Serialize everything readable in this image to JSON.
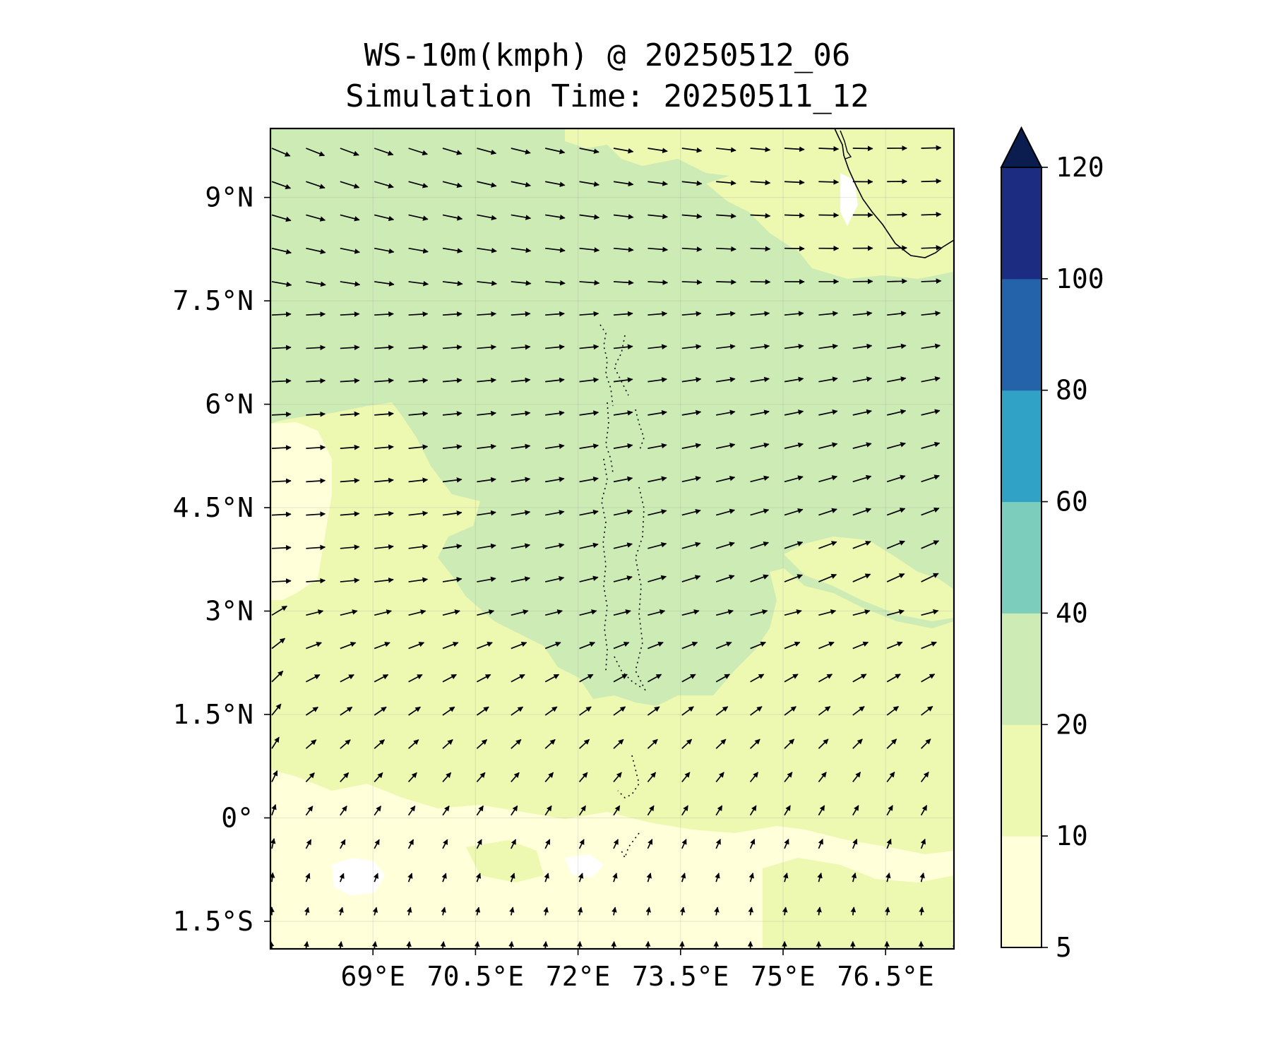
{
  "title": {
    "line1": "WS-10m(kmph) @ 20250512_06",
    "line2": "Simulation Time: 20250511_12"
  },
  "map": {
    "lon_range": [
      67.5,
      77.5
    ],
    "lat_range": [
      -1.9,
      10.0
    ],
    "lon_ticks": [
      {
        "value": 69.0,
        "label": "69°E"
      },
      {
        "value": 70.5,
        "label": "70.5°E"
      },
      {
        "value": 72.0,
        "label": "72°E"
      },
      {
        "value": 73.5,
        "label": "73.5°E"
      },
      {
        "value": 75.0,
        "label": "75°E"
      },
      {
        "value": 76.5,
        "label": "76.5°E"
      }
    ],
    "lat_ticks": [
      {
        "value": 9.0,
        "label": "9°N"
      },
      {
        "value": 7.5,
        "label": "7.5°N"
      },
      {
        "value": 6.0,
        "label": "6°N"
      },
      {
        "value": 4.5,
        "label": "4.5°N"
      },
      {
        "value": 3.0,
        "label": "3°N"
      },
      {
        "value": 1.5,
        "label": "1.5°N"
      },
      {
        "value": 0.0,
        "label": "0°"
      },
      {
        "value": -1.5,
        "label": "1.5°S"
      }
    ],
    "gridlines": true
  },
  "colorbar": {
    "levels": [
      5,
      10,
      20,
      40,
      60,
      80,
      100,
      120
    ],
    "labels": [
      "5",
      "10",
      "20",
      "40",
      "60",
      "80",
      "100",
      "120"
    ],
    "colors": [
      "#ffffd9",
      "#edf8b1",
      "#cdebb5",
      "#7ccdbb",
      "#2fa2c6",
      "#2462aa",
      "#1c2c80"
    ],
    "extend_color": "#0b1d4f",
    "extend": "max"
  },
  "field_colors": {
    "below_5": "#ffffff",
    "5_10": "#ffffd9",
    "10_20": "#edf8b1",
    "20_40": "#cdebb5"
  }
}
